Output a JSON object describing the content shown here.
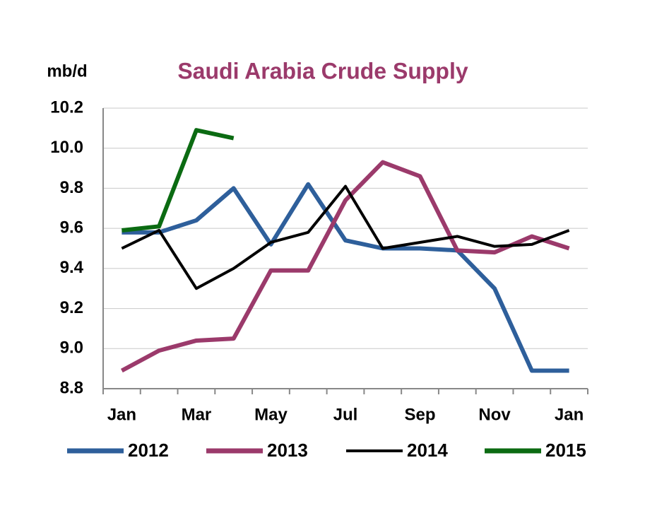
{
  "chart_data": {
    "type": "line",
    "title": "Saudi Arabia Crude Supply",
    "y_label": "mb/d",
    "categories": [
      "Jan",
      null,
      "Mar",
      null,
      "May",
      null,
      "Jul",
      null,
      "Sep",
      null,
      "Nov",
      null,
      "Jan"
    ],
    "series": [
      {
        "name": "2012",
        "color": "#2e5f9b",
        "values": [
          9.58,
          9.58,
          9.64,
          9.8,
          9.52,
          9.82,
          9.54,
          9.5,
          9.5,
          9.49,
          9.3,
          8.89,
          8.89
        ]
      },
      {
        "name": "2013",
        "color": "#9b3a6b",
        "values": [
          8.89,
          8.99,
          9.04,
          9.05,
          9.39,
          9.39,
          9.74,
          9.93,
          9.86,
          9.49,
          9.48,
          9.56,
          9.5
        ]
      },
      {
        "name": "2014",
        "color": "#000000",
        "values": [
          9.5,
          9.59,
          9.3,
          9.4,
          9.53,
          9.58,
          9.81,
          9.5,
          9.53,
          9.56,
          9.51,
          9.52,
          9.59
        ]
      },
      {
        "name": "2015",
        "color": "#0b6b12",
        "values": [
          9.59,
          9.61,
          10.09,
          10.05,
          null,
          null,
          null,
          null,
          null,
          null,
          null,
          null,
          null
        ]
      }
    ],
    "ylim": [
      8.8,
      10.2
    ],
    "yticks": [
      {
        "value": 8.8,
        "label": "8.8"
      },
      {
        "value": 9.0,
        "label": "9.0"
      },
      {
        "value": 9.2,
        "label": "9.2"
      },
      {
        "value": 9.4,
        "label": "9.4"
      },
      {
        "value": 9.6,
        "label": "9.6"
      },
      {
        "value": 9.8,
        "label": "9.8"
      },
      {
        "value": 10.0,
        "label": "10.0"
      },
      {
        "value": 10.2,
        "label": "10.2"
      }
    ],
    "grid": true,
    "legend": "bottom"
  }
}
